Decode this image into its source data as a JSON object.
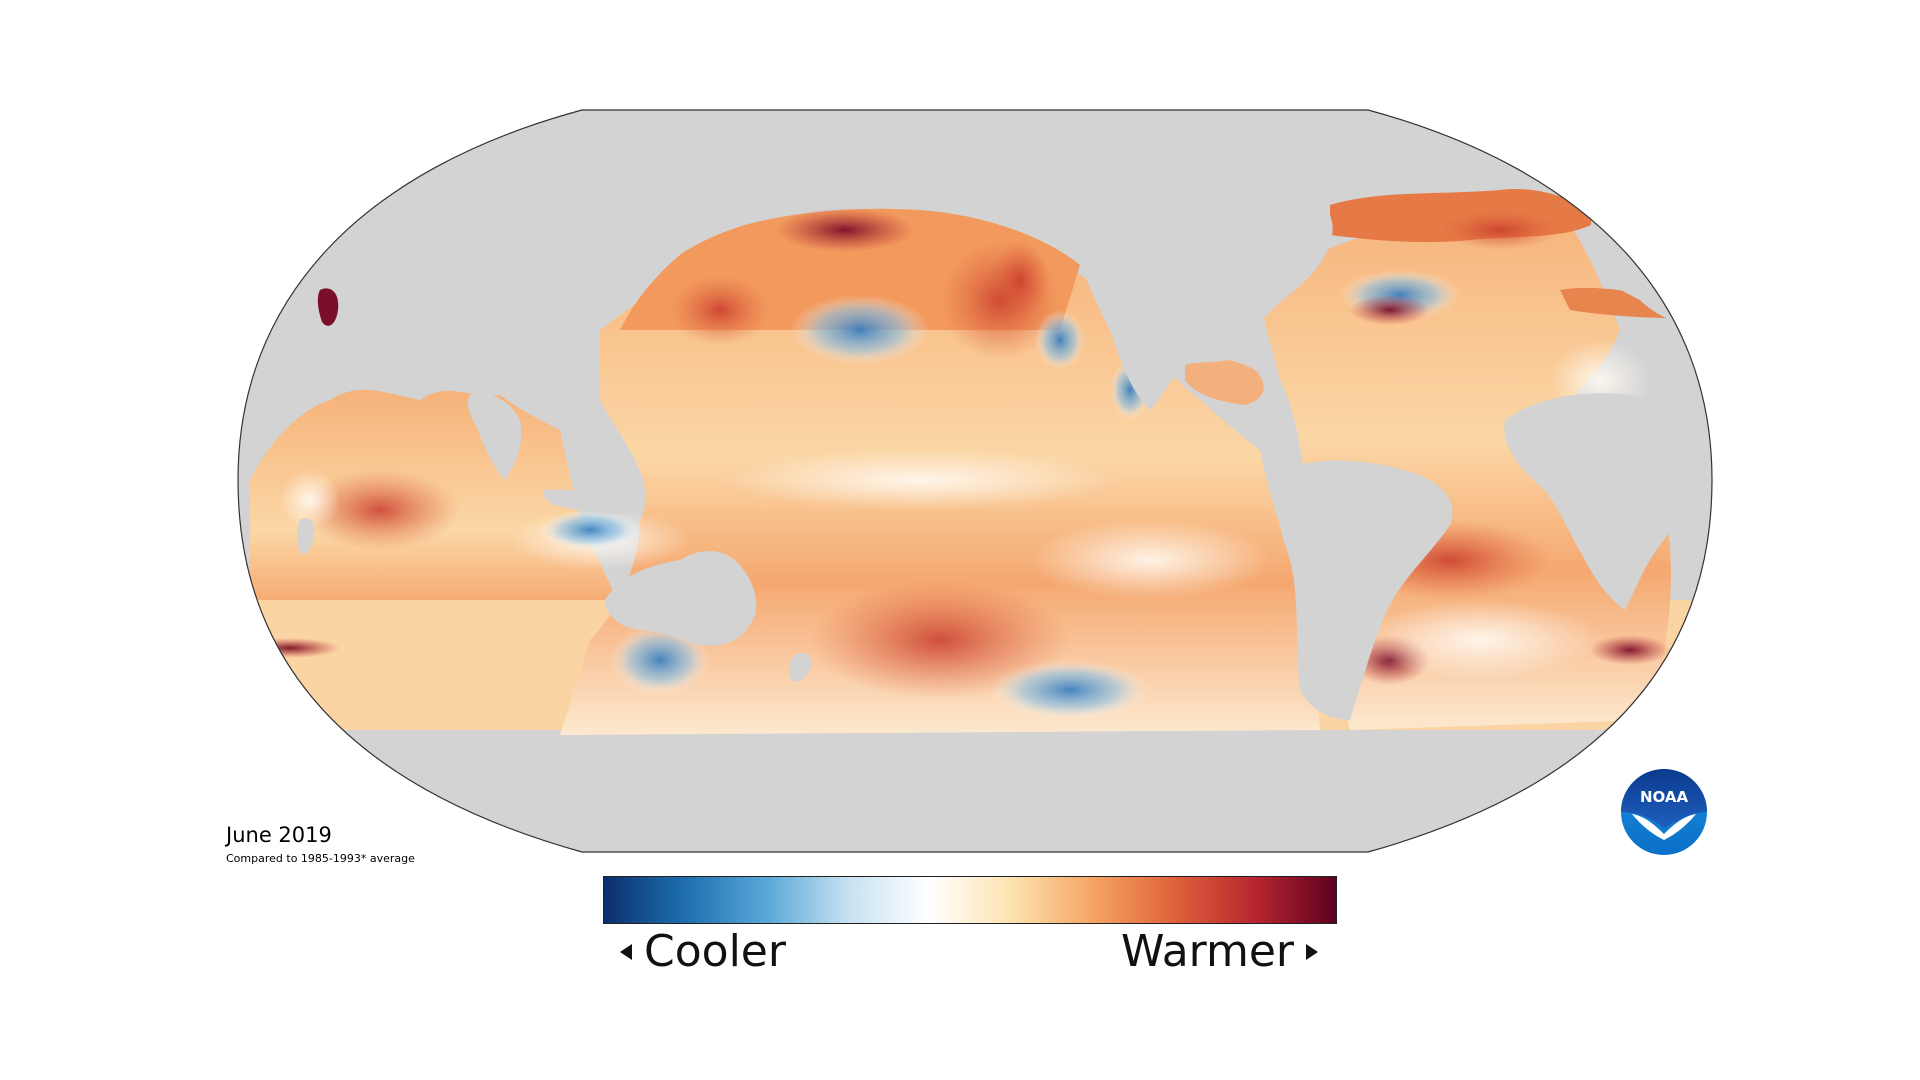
{
  "caption": {
    "date": "June 2019",
    "baseline": "Compared to 1985-1993* average"
  },
  "legend": {
    "cooler_label": "Cooler",
    "warmer_label": "Warmer",
    "colors": [
      "#0b2f6b",
      "#1f6fb0",
      "#5aa7d8",
      "#c6e2f1",
      "#ffffff",
      "#fde3b0",
      "#f5a565",
      "#e0623a",
      "#b7262f",
      "#5e0020"
    ]
  },
  "logo": {
    "text": "NOAA"
  },
  "colors": {
    "land": "#d3d3d3",
    "outline": "#222222",
    "warm": "#f2a066",
    "hot": "#d5552c",
    "very_hot": "#8e1430",
    "cool": "#7fb6de",
    "cold": "#2c6fb0",
    "neutral": "#fbe6c8"
  }
}
